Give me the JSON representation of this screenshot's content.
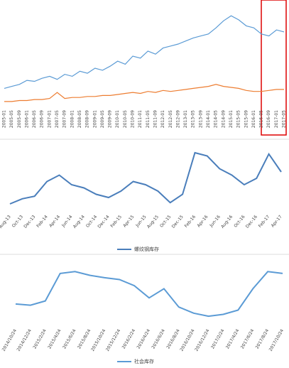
{
  "chart_data": [
    {
      "type": "line",
      "categories": [
        "2005-01",
        "2005-05",
        "2005-09",
        "2006-01",
        "2006-05",
        "2006-09",
        "2007-01",
        "2007-05",
        "2007-09",
        "2008-01",
        "2008-05",
        "2008-09",
        "2009-01",
        "2009-05",
        "2009-09",
        "2010-01",
        "2010-05",
        "2010-09",
        "2011-01",
        "2011-05",
        "2011-09",
        "2012-01",
        "2012-05",
        "2012-09",
        "2013-01",
        "2013-05",
        "2013-09",
        "2014-01",
        "2014-05",
        "2014-09",
        "2015-01",
        "2015-05",
        "2015-09",
        "2016-01",
        "2016-05",
        "2016-09",
        "2017-01",
        "2017-05"
      ],
      "series": [
        {
          "color": "#5b9bd5",
          "values": [
            18,
            20,
            22,
            26,
            25,
            28,
            30,
            27,
            32,
            30,
            35,
            33,
            38,
            36,
            40,
            45,
            42,
            50,
            48,
            55,
            52,
            58,
            60,
            62,
            65,
            68,
            70,
            72,
            78,
            85,
            90,
            86,
            80,
            78,
            72,
            70,
            76,
            74
          ]
        },
        {
          "color": "#ed7d31",
          "values": [
            5,
            5,
            6,
            6,
            7,
            7,
            8,
            14,
            8,
            9,
            9,
            10,
            10,
            11,
            11,
            12,
            13,
            14,
            13,
            15,
            14,
            16,
            15,
            16,
            17,
            18,
            19,
            20,
            22,
            20,
            19,
            18,
            16,
            15,
            15,
            16,
            17,
            17
          ]
        }
      ],
      "ylim": [
        0,
        100
      ]
    },
    {
      "type": "line",
      "categories": [
        "Aug-13",
        "Oct-13",
        "Dec-13",
        "Feb-14",
        "Apr-14",
        "Jun-14",
        "Aug-14",
        "Oct-14",
        "Dec-14",
        "Feb-15",
        "Apr-15",
        "Jun-15",
        "Aug-15",
        "Oct-15",
        "Dec-15",
        "Feb-16",
        "Apr-16",
        "Jun-16",
        "Aug-16",
        "Oct-16",
        "Dec-16",
        "Feb-17",
        "Apr-17"
      ],
      "series": [
        {
          "name": "螺纹钢库存",
          "color": "#4a7ebb",
          "values": [
            10,
            18,
            22,
            45,
            55,
            40,
            35,
            25,
            20,
            30,
            45,
            40,
            30,
            12,
            25,
            90,
            85,
            65,
            55,
            40,
            50,
            88,
            60
          ]
        }
      ],
      "ylim": [
        0,
        100
      ]
    },
    {
      "type": "line",
      "categories": [
        "2014/10/24",
        "2014/12/24",
        "2015/2/24",
        "2015/4/24",
        "2015/6/24",
        "2015/8/24",
        "2015/10/24",
        "2015/12/24",
        "2016/2/24",
        "2016/4/24",
        "2016/6/24",
        "2016/8/24",
        "2016/10/24",
        "2016/12/24",
        "2017/2/24",
        "2017/4/24",
        "2017/6/24",
        "2017/8/24",
        "2017/10/24"
      ],
      "series": [
        {
          "name": "社会库存",
          "color": "#5b9bd5",
          "values": [
            35,
            33,
            40,
            85,
            88,
            82,
            78,
            75,
            65,
            45,
            60,
            30,
            20,
            15,
            18,
            25,
            60,
            88,
            85
          ]
        }
      ],
      "ylim": [
        0,
        100
      ]
    }
  ]
}
